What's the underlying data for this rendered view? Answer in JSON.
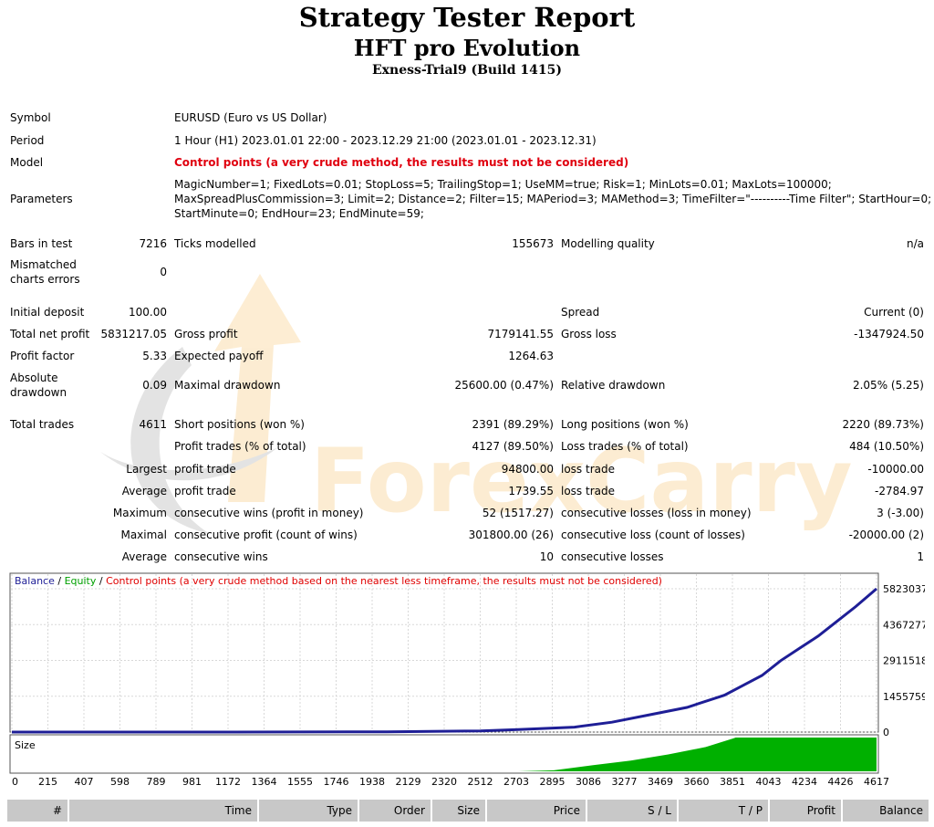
{
  "title": "Strategy Tester Report",
  "expert": "HFT pro Evolution",
  "account": "Exness-Trial9 (Build 1415)",
  "info": {
    "symbol_label": "Symbol",
    "symbol": "EURUSD (Euro vs US Dollar)",
    "period_label": "Period",
    "period": "1 Hour (H1) 2023.01.01 22:00 - 2023.12.29 21:00 (2023.01.01 - 2023.12.31)",
    "model_label": "Model",
    "model": "Control points (a very crude method, the results must not be considered)",
    "parameters_label": "Parameters",
    "parameters_line1": "MagicNumber=1; FixedLots=0.01; StopLoss=5; TrailingStop=1; UseMM=true; Risk=1; MinLots=0.01; MaxLots=100000;",
    "parameters_line2": "MaxSpreadPlusCommission=3; Limit=2; Distance=2; Filter=15; MAPeriod=3; MAMethod=3; TimeFilter=\"----------Time Filter\"; StartHour=0;",
    "parameters_line3": "StartMinute=0; EndHour=23; EndMinute=59;"
  },
  "stats": {
    "bars_label": "Bars in test",
    "bars": "7216",
    "ticks_label": "Ticks modelled",
    "ticks": "155673",
    "quality_label": "Modelling quality",
    "quality": "n/a",
    "mismatch_label_1": "Mismatched",
    "mismatch_label_2": "charts errors",
    "mismatch": "0",
    "deposit_label": "Initial deposit",
    "deposit": "100.00",
    "spread_label": "Spread",
    "spread": "Current (0)",
    "net_label": "Total net profit",
    "net": "5831217.05",
    "gross_profit_label": "Gross profit",
    "gross_profit": "7179141.55",
    "gross_loss_label": "Gross loss",
    "gross_loss": "-1347924.50",
    "pf_label": "Profit factor",
    "pf": "5.33",
    "ep_label": "Expected payoff",
    "ep": "1264.63",
    "abs_dd_label_1": "Absolute",
    "abs_dd_label_2": "drawdown",
    "abs_dd": "0.09",
    "max_dd_label": "Maximal drawdown",
    "max_dd": "25600.00 (0.47%)",
    "rel_dd_label": "Relative drawdown",
    "rel_dd": "2.05% (5.25)",
    "trades_label": "Total trades",
    "trades": "4611",
    "short_label": "Short positions (won %)",
    "short": "2391 (89.29%)",
    "long_label": "Long positions (won %)",
    "long": "2220 (89.73%)",
    "profit_trades_label": "Profit trades (% of total)",
    "profit_trades": "4127 (89.50%)",
    "loss_trades_label": "Loss trades (% of total)",
    "loss_trades": "484 (10.50%)",
    "largest": "Largest",
    "average": "Average",
    "maximum": "Maximum",
    "maximal": "Maximal",
    "largest_profit_label": "profit trade",
    "largest_profit": "94800.00",
    "largest_loss_label": "loss trade",
    "largest_loss": "-10000.00",
    "avg_profit_label": "profit trade",
    "avg_profit": "1739.55",
    "avg_loss_label": "loss trade",
    "avg_loss": "-2784.97",
    "max_wins_label": "consecutive wins (profit in money)",
    "max_wins": "52 (1517.27)",
    "max_losses_label": "consecutive losses (loss in money)",
    "max_losses": "3 (-3.00)",
    "maximal_profit_label": "consecutive profit (count of wins)",
    "maximal_profit": "301800.00 (26)",
    "maximal_loss_label": "consecutive loss (count of losses)",
    "maximal_loss": "-20000.00 (2)",
    "avg_wins_label": "consecutive wins",
    "avg_wins": "10",
    "avg_losses_label": "consecutive losses",
    "avg_losses": "1"
  },
  "watermark": "ForexCarry",
  "legend": {
    "balance": "Balance",
    "sep": " / ",
    "equity": "Equity",
    "control": "Control points (a very crude method based on the nearest less timeframe, the results must not be considered)"
  },
  "size_label": "Size",
  "colors": {
    "balance": "#1e1e96",
    "equity": "#00a000",
    "control": "#e00000",
    "size": "#00b000",
    "header_bg": "#c8c8c8"
  },
  "table_headers": [
    "#",
    "Time",
    "Type",
    "Order",
    "Size",
    "Price",
    "S / L",
    "T / P",
    "Profit",
    "Balance"
  ],
  "chart_data": {
    "type": "line",
    "y_ticks": [
      "5823037",
      "4367277",
      "2911518",
      "1455759",
      "0"
    ],
    "x_ticks": [
      "0",
      "215",
      "407",
      "598",
      "789",
      "981",
      "1172",
      "1364",
      "1555",
      "1746",
      "1938",
      "2129",
      "2320",
      "2512",
      "2703",
      "2895",
      "3086",
      "3277",
      "3469",
      "3660",
      "3851",
      "4043",
      "4234",
      "4426",
      "4617"
    ],
    "ylim": [
      0,
      5823037
    ],
    "xlim": [
      0,
      4611
    ],
    "series": [
      {
        "name": "Balance",
        "x": [
          0,
          1000,
          2000,
          2500,
          2700,
          3000,
          3200,
          3400,
          3600,
          3800,
          3900,
          4000,
          4100,
          4200,
          4300,
          4400,
          4500,
          4611
        ],
        "values": [
          100,
          1000,
          10000,
          50000,
          100000,
          200000,
          400000,
          700000,
          1000000,
          1500000,
          1900000,
          2300000,
          2900000,
          3400000,
          3900000,
          4500000,
          5100000,
          5823037
        ]
      }
    ],
    "size_series": {
      "x": [
        0,
        2700,
        2890,
        3100,
        3300,
        3500,
        3700,
        3850,
        3860,
        4611
      ],
      "values": [
        0,
        0,
        0.03,
        0.18,
        0.32,
        0.5,
        0.72,
        0.98,
        1,
        1
      ]
    }
  }
}
